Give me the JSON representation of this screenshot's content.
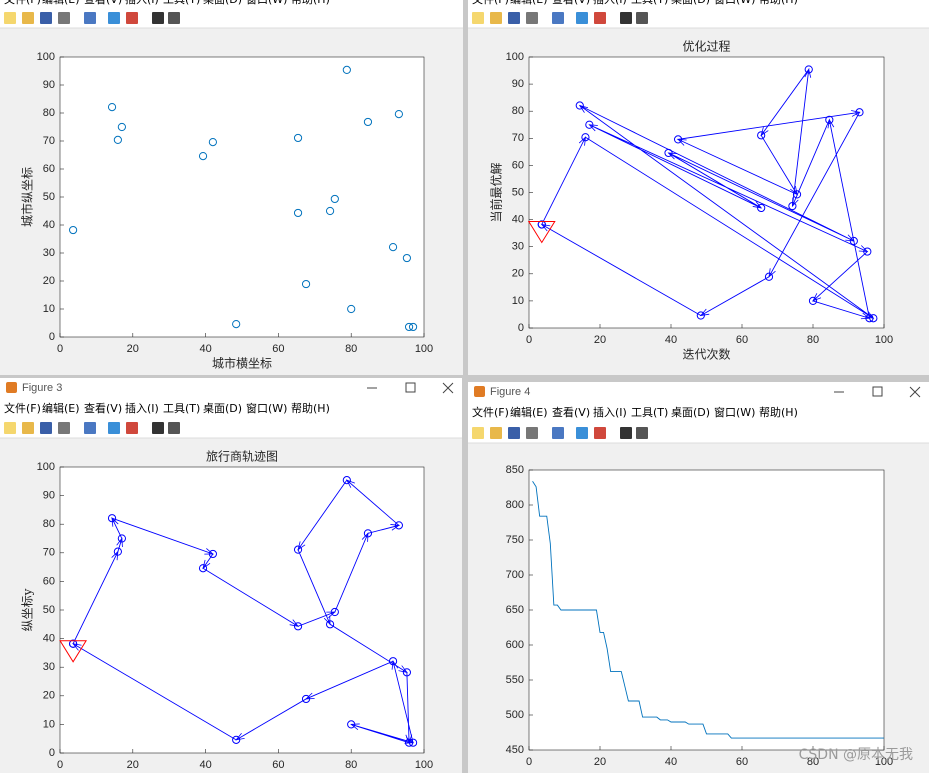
{
  "menu": [
    "文件(F)",
    "编辑(E)",
    "查看(V)",
    "插入(I)",
    "工具(T)",
    "桌面(D)",
    "窗口(W)",
    "帮助(H)"
  ],
  "windows": [
    {
      "title": "Figure 3"
    },
    {
      "title": "Figure 4"
    }
  ],
  "watermark": "CSDN @原本无我",
  "chart_data": [
    {
      "type": "scatter",
      "x_label": "城市横坐标",
      "y_label": "城市纵坐标",
      "color": "#0072bd",
      "x": [
        3.6,
        14.3,
        15.9,
        17.0,
        39.3,
        42.0,
        48.4,
        65.4,
        65.4,
        67.6,
        74.2,
        75.5,
        78.8,
        80.0,
        84.6,
        91.5,
        93.1,
        95.3,
        95.9,
        97.0
      ],
      "values": [
        38.2,
        82.1,
        70.4,
        75.0,
        64.6,
        69.6,
        4.6,
        71.1,
        44.3,
        18.9,
        45.0,
        49.3,
        95.4,
        10.0,
        76.8,
        32.1,
        79.6,
        28.2,
        3.6,
        3.6
      ],
      "xlim": [
        0,
        100
      ],
      "xticks": [
        0,
        20,
        40,
        60,
        80,
        100
      ],
      "ylim": [
        0,
        100
      ],
      "yticks": [
        0,
        10,
        20,
        30,
        40,
        50,
        60,
        70,
        80,
        90,
        100
      ]
    },
    {
      "type": "route",
      "title": "优化过程",
      "x_label": "迭代次数",
      "y_label": "当前最优解",
      "color": "#0000ff",
      "start_color": "#ff0000",
      "x": [
        3.6,
        15.9,
        97.0,
        14.3,
        91.5,
        39.3,
        65.4,
        17.0,
        95.3,
        80.0,
        95.9,
        84.6,
        74.2,
        78.8,
        65.4,
        75.5,
        42.0,
        93.1,
        67.6,
        48.4,
        3.6
      ],
      "values": [
        38.2,
        70.4,
        3.6,
        82.1,
        32.1,
        64.6,
        44.3,
        75.0,
        28.2,
        10.0,
        3.6,
        76.8,
        45.0,
        95.4,
        71.1,
        49.3,
        69.6,
        79.6,
        18.9,
        4.6,
        38.2
      ],
      "xlim": [
        0,
        100
      ],
      "xticks": [
        0,
        20,
        40,
        60,
        80,
        100
      ],
      "ylim": [
        0,
        100
      ],
      "yticks": [
        0,
        10,
        20,
        30,
        40,
        50,
        60,
        70,
        80,
        90,
        100
      ]
    },
    {
      "type": "route",
      "title": "旅行商轨迹图",
      "y_label": "纵坐标y",
      "color": "#0000ff",
      "start_color": "#ff0000",
      "x": [
        3.6,
        15.9,
        17.0,
        14.3,
        42.0,
        39.3,
        65.4,
        75.5,
        84.6,
        93.1,
        78.8,
        65.4,
        74.2,
        95.3,
        95.9,
        80.0,
        97.0,
        91.5,
        67.6,
        48.4,
        3.6
      ],
      "values": [
        38.2,
        70.4,
        75.0,
        82.1,
        69.6,
        64.6,
        44.3,
        49.3,
        76.8,
        79.6,
        95.4,
        71.1,
        45.0,
        28.2,
        3.6,
        10.0,
        3.6,
        32.1,
        18.9,
        4.6,
        38.2
      ],
      "xlim": [
        0,
        100
      ],
      "xticks": [
        0,
        20,
        40,
        60,
        80,
        100
      ],
      "ylim": [
        0,
        100
      ],
      "yticks": [
        0,
        10,
        20,
        30,
        40,
        50,
        60,
        70,
        80,
        90,
        100
      ]
    },
    {
      "type": "line",
      "color": "#0072bd",
      "x": [
        1,
        2,
        3,
        4,
        5,
        6,
        7,
        8,
        9,
        10,
        11,
        12,
        13,
        14,
        15,
        16,
        17,
        18,
        19,
        20,
        21,
        22,
        23,
        24,
        25,
        26,
        27,
        28,
        29,
        30,
        31,
        32,
        33,
        34,
        35,
        36,
        37,
        38,
        39,
        40,
        41,
        42,
        43,
        44,
        45,
        46,
        47,
        48,
        49,
        50,
        51,
        52,
        53,
        54,
        55,
        56,
        57,
        58,
        59,
        60,
        61,
        62,
        63,
        64,
        65,
        66,
        67,
        68,
        69,
        70,
        71,
        72,
        73,
        74,
        75,
        76,
        77,
        78,
        79,
        80,
        81,
        82,
        83,
        84,
        85,
        86,
        87,
        88,
        89,
        90,
        91,
        92,
        93,
        94,
        95,
        96,
        97,
        98,
        99,
        100
      ],
      "values": [
        834,
        826,
        784,
        784,
        784,
        745,
        657,
        657,
        650,
        650,
        650,
        650,
        650,
        650,
        650,
        650,
        650,
        650,
        650,
        618,
        618,
        595,
        562,
        562,
        562,
        562,
        541,
        520,
        520,
        520,
        520,
        497,
        497,
        497,
        497,
        497,
        493,
        493,
        493,
        490,
        490,
        490,
        490,
        490,
        487,
        487,
        487,
        487,
        487,
        473,
        473,
        473,
        473,
        473,
        473,
        473,
        467,
        467,
        467,
        467,
        467,
        467,
        467,
        467,
        467,
        467,
        467,
        467,
        467,
        467,
        467,
        467,
        467,
        467,
        467,
        467,
        467,
        467,
        467,
        467,
        467,
        467,
        467,
        467,
        467,
        467,
        467,
        467,
        467,
        467,
        467,
        467,
        467,
        467,
        467,
        467,
        467,
        467,
        467,
        467
      ],
      "xlim": [
        0,
        100
      ],
      "xticks": [
        0,
        20,
        40,
        60,
        80,
        100
      ],
      "ylim": [
        450,
        850
      ],
      "yticks": [
        450,
        500,
        550,
        600,
        650,
        700,
        750,
        800,
        850
      ]
    }
  ]
}
